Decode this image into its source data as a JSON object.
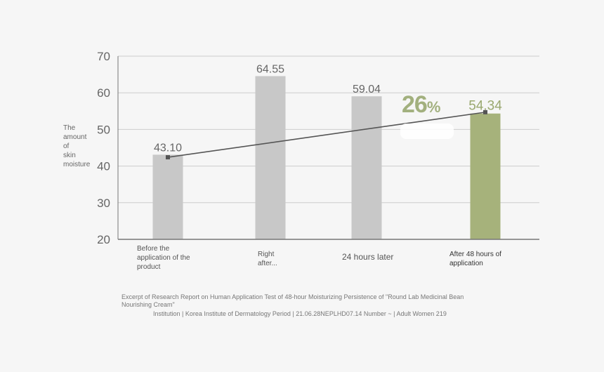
{
  "chart_data": {
    "type": "bar",
    "ylabel": "The\namount\nof\nskin\nmoisture",
    "ylim": [
      20,
      70
    ],
    "yticks": [
      20,
      30,
      40,
      50,
      60,
      70
    ],
    "grid": true,
    "categories": [
      "Before the\napplication of the\nproduct",
      "Right\nafter...",
      "24 hours later",
      "After 48 hours of\napplication"
    ],
    "values": [
      43.1,
      64.55,
      59.04,
      54.34
    ],
    "value_labels": [
      "43.10",
      "64.55",
      "59.04",
      "54.34"
    ],
    "trend_line": [
      42.4,
      54.7
    ],
    "highlight_index": 3,
    "colors": {
      "bar": "#c8c8c8",
      "highlight": "#a6b27b",
      "trend": "#555555",
      "grid": "#cccccc",
      "axis": "#777777",
      "tick_text": "#666666",
      "value_text": "#666666",
      "highlight_text": "#9aa86f"
    },
    "annotation": {
      "number": "26",
      "percent": "%"
    }
  },
  "footer": {
    "line1": "Excerpt of Research Report on Human Application Test of 48-hour Moisturizing Persistence of \"Round Lab Medicinal Bean Nourishing Cream\"",
    "line2": "Institution | Korea Institute of Dermatology Period | 21.06.28NEPLHD07.14 Number ~ | Adult Women 219"
  }
}
